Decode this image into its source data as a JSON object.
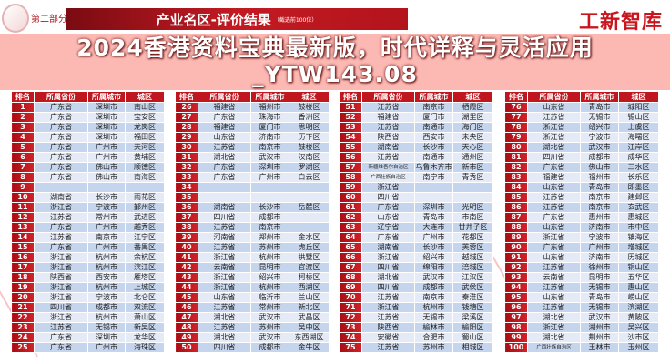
{
  "header": {
    "section": "第二部分",
    "title": "产业名区-评价结果",
    "subtitle": "（截选前100位）",
    "brand": "工新智库"
  },
  "columns": [
    "排名",
    "所属省份",
    "所属城市",
    "城区"
  ],
  "overlay": {
    "line1": "2024香港资料宝典最新版，时代详释与灵活应用",
    "line2": "_YTW143.08"
  },
  "colors": {
    "header_red": "#c0161e",
    "row_blue": "#c6d5ee",
    "row_light": "#e4ebf7",
    "brand_red": "#c8161e"
  },
  "tables": [
    [
      [
        "1",
        "广东省",
        "深圳市",
        "南山区"
      ],
      [
        "2",
        "广东省",
        "深圳市",
        "宝安区"
      ],
      [
        "3",
        "广东省",
        "深圳市",
        "龙岗区"
      ],
      [
        "4",
        "广东省",
        "深圳市",
        "福田区"
      ],
      [
        "5",
        "广东省",
        "广州市",
        "天河区"
      ],
      [
        "6",
        "广东省",
        "广州市",
        "黄埔区"
      ],
      [
        "7",
        "广东省",
        "佛山市",
        "顺德区"
      ],
      [
        "8",
        "广东省",
        "佛山市",
        "南海区"
      ],
      [
        "9",
        "",
        "",
        ""
      ],
      [
        "10",
        "湖南省",
        "长沙市",
        "雨花区"
      ],
      [
        "11",
        "浙江省",
        "宁波市",
        "鄞州区"
      ],
      [
        "12",
        "江苏省",
        "常州市",
        "武进区"
      ],
      [
        "13",
        "广东省",
        "广州市",
        "越秀区"
      ],
      [
        "14",
        "江苏省",
        "南京市",
        "江宁区"
      ],
      [
        "15",
        "广东省",
        "广州市",
        "番禺区"
      ],
      [
        "16",
        "浙江省",
        "杭州市",
        "余杭区"
      ],
      [
        "17",
        "浙江省",
        "杭州市",
        "滨江区"
      ],
      [
        "18",
        "陕西省",
        "西安市",
        "雁塔区"
      ],
      [
        "19",
        "浙江省",
        "杭州市",
        "上城区"
      ],
      [
        "20",
        "浙江省",
        "宁波市",
        "北仑区"
      ],
      [
        "21",
        "四川省",
        "成都市",
        "双流区"
      ],
      [
        "22",
        "浙江省",
        "杭州市",
        "萧山区"
      ],
      [
        "23",
        "江苏省",
        "无锡市",
        "新吴区"
      ],
      [
        "24",
        "广东省",
        "深圳市",
        "龙华区"
      ],
      [
        "25",
        "广东省",
        "广州市",
        "海珠区"
      ]
    ],
    [
      [
        "26",
        "福建省",
        "福州市",
        "鼓楼区"
      ],
      [
        "27",
        "广东省",
        "珠海市",
        "香洲区"
      ],
      [
        "28",
        "福建省",
        "厦门市",
        "思明区"
      ],
      [
        "29",
        "山东省",
        "济南市",
        "历下区"
      ],
      [
        "30",
        "江苏省",
        "南京市",
        "鼓楼区"
      ],
      [
        "31",
        "湖北省",
        "武汉市",
        "汉南区"
      ],
      [
        "32",
        "广东省",
        "深圳市",
        "罗湖区"
      ],
      [
        "33",
        "广东省",
        "广州市",
        "白云区"
      ],
      [
        "34",
        "",
        "",
        ""
      ],
      [
        "35",
        "",
        "",
        ""
      ],
      [
        "36",
        "湖南省",
        "长沙市",
        "岳麓区"
      ],
      [
        "37",
        "四川省",
        "成都市",
        ""
      ],
      [
        "38",
        "江苏省",
        "南京市",
        ""
      ],
      [
        "39",
        "河南省",
        "郑州市",
        "金水区"
      ],
      [
        "40",
        "江苏省",
        "苏州市",
        "虎丘区"
      ],
      [
        "41",
        "浙江省",
        "杭州市",
        "拱墅区"
      ],
      [
        "42",
        "云南省",
        "昆明市",
        "官渡区"
      ],
      [
        "43",
        "浙江省",
        "绍兴市",
        "柯桥区"
      ],
      [
        "44",
        "浙江省",
        "杭州市",
        "西湖区"
      ],
      [
        "45",
        "山东省",
        "临沂市",
        "兰山区"
      ],
      [
        "46",
        "江苏省",
        "常州市",
        "新北区"
      ],
      [
        "47",
        "湖北省",
        "武汉市",
        "武昌区"
      ],
      [
        "48",
        "江苏省",
        "苏州市",
        "吴中区"
      ],
      [
        "49",
        "湖北省",
        "武汉市",
        "东西湖区"
      ],
      [
        "50",
        "四川省",
        "成都市",
        "金牛区"
      ]
    ],
    [
      [
        "51",
        "江苏省",
        "南京市",
        "栖霞区"
      ],
      [
        "52",
        "福建省",
        "厦门市",
        "湖里区"
      ],
      [
        "53",
        "江苏省",
        "南通市",
        "海门区"
      ],
      [
        "54",
        "陕西省",
        "西安市",
        "未央区"
      ],
      [
        "55",
        "湖南省",
        "长沙市",
        "天心区"
      ],
      [
        "56",
        "江苏省",
        "南通市",
        "通州区"
      ],
      [
        "57",
        "新疆维吾尔自治区",
        "乌鲁木齐市",
        "新市区"
      ],
      [
        "58",
        "广西壮族自治区",
        "南宁市",
        "青秀区"
      ],
      [
        "59",
        "浙江省",
        "",
        ""
      ],
      [
        "60",
        "四川省",
        "",
        ""
      ],
      [
        "61",
        "广东省",
        "深圳市",
        "光明区"
      ],
      [
        "62",
        "山东省",
        "青岛市",
        "市南区"
      ],
      [
        "63",
        "辽宁省",
        "大连市",
        "甘井子区"
      ],
      [
        "64",
        "广东省",
        "广州市",
        "花都区"
      ],
      [
        "65",
        "湖南省",
        "长沙市",
        "芙蓉区"
      ],
      [
        "66",
        "浙江省",
        "绍兴市",
        "越城区"
      ],
      [
        "67",
        "四川省",
        "绵阳市",
        "涪城区"
      ],
      [
        "68",
        "湖北省",
        "武汉市",
        "江汉区"
      ],
      [
        "69",
        "四川省",
        "成都市",
        "武侯区"
      ],
      [
        "70",
        "江苏省",
        "南京市",
        "秦淮区"
      ],
      [
        "71",
        "浙江省",
        "杭州市",
        "钱塘区"
      ],
      [
        "72",
        "江苏省",
        "无锡市",
        "梁溪区"
      ],
      [
        "73",
        "陕西省",
        "榆林市",
        "榆阳区"
      ],
      [
        "74",
        "安徽省",
        "合肥市",
        "蜀山区"
      ],
      [
        "75",
        "江苏省",
        "苏州市",
        "相城区"
      ]
    ],
    [
      [
        "76",
        "山东省",
        "青岛市",
        "城阳区"
      ],
      [
        "77",
        "江苏省",
        "无锡市",
        "锡山区"
      ],
      [
        "78",
        "浙江省",
        "绍兴市",
        "上虞区"
      ],
      [
        "79",
        "浙江省",
        "宁波市",
        "海曙区"
      ],
      [
        "80",
        "湖北省",
        "武汉市",
        "江岸区"
      ],
      [
        "81",
        "四川省",
        "成都市",
        "成华区"
      ],
      [
        "82",
        "广东省",
        "佛山市",
        "三水区"
      ],
      [
        "83",
        "福建省",
        "福州市",
        "长乐区"
      ],
      [
        "84",
        "山东省",
        "青岛市",
        "即墨区"
      ],
      [
        "85",
        "江苏省",
        "南京市",
        "建邺区"
      ],
      [
        "86",
        "江苏省",
        "南京市",
        "玄武区"
      ],
      [
        "87",
        "广东省",
        "惠州市",
        "惠城区"
      ],
      [
        "88",
        "山东省",
        "济南市",
        "市中区"
      ],
      [
        "89",
        "浙江省",
        "宁波市",
        "镇海区"
      ],
      [
        "90",
        "广东省",
        "广州市",
        "增城区"
      ],
      [
        "91",
        "山东省",
        "济南市",
        "历城区"
      ],
      [
        "92",
        "江苏省",
        "徐州市",
        "铜山区"
      ],
      [
        "93",
        "云南省",
        "昆明市",
        "五华区"
      ],
      [
        "94",
        "江苏省",
        "无锡市",
        "惠山区"
      ],
      [
        "95",
        "山东省",
        "青岛市",
        "崂山区"
      ],
      [
        "96",
        "江苏省",
        "无锡市",
        "滨湖区"
      ],
      [
        "97",
        "湖北省",
        "武汉市",
        "黄陂区"
      ],
      [
        "98",
        "浙江省",
        "湖州市",
        "吴兴区"
      ],
      [
        "99",
        "湖北省",
        "荆州市",
        "沙市区"
      ],
      [
        "100",
        "广西壮族自治区",
        "玉林市",
        "玉州区"
      ]
    ]
  ]
}
